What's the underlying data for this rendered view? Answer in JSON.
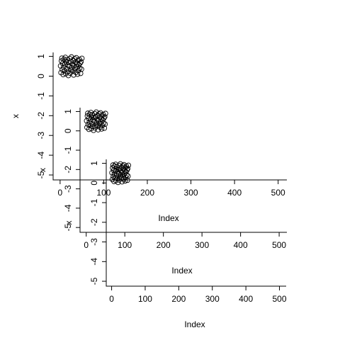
{
  "chart_data": {
    "type": "scatter",
    "xlabel": "Index",
    "ylabel": "x",
    "x": [
      1,
      2,
      3,
      4,
      5,
      6,
      7,
      8,
      9,
      10,
      11,
      12,
      13,
      14,
      15,
      16,
      17,
      18,
      19,
      20,
      21,
      22,
      23,
      24,
      25,
      26,
      27,
      28,
      29,
      30,
      31,
      32,
      33,
      34,
      35,
      36,
      37,
      38,
      39,
      40,
      41,
      42,
      43,
      44,
      45,
      46,
      47,
      48,
      49,
      50
    ],
    "values": [
      0.52,
      0.18,
      0.77,
      0.91,
      0.33,
      0.64,
      0.08,
      0.45,
      0.86,
      0.27,
      0.59,
      0.95,
      0.12,
      0.71,
      0.38,
      0.83,
      0.22,
      0.56,
      0.03,
      0.68,
      0.49,
      0.89,
      0.15,
      0.74,
      0.31,
      0.97,
      0.42,
      0.61,
      0.25,
      0.8,
      0.06,
      0.53,
      0.88,
      0.36,
      0.7,
      0.19,
      0.93,
      0.47,
      0.62,
      0.1,
      0.79,
      0.28,
      0.57,
      0.85,
      0.4,
      0.66,
      0.14,
      0.73,
      0.35,
      0.9
    ],
    "color": "#000000",
    "xlim": [
      -16,
      520
    ],
    "xticks": [
      0,
      100,
      200,
      300,
      400,
      500
    ],
    "ylim": [
      -5.25,
      1.2
    ],
    "yticks": [
      -5,
      -4,
      -3,
      -2,
      -1,
      0,
      1
    ]
  }
}
